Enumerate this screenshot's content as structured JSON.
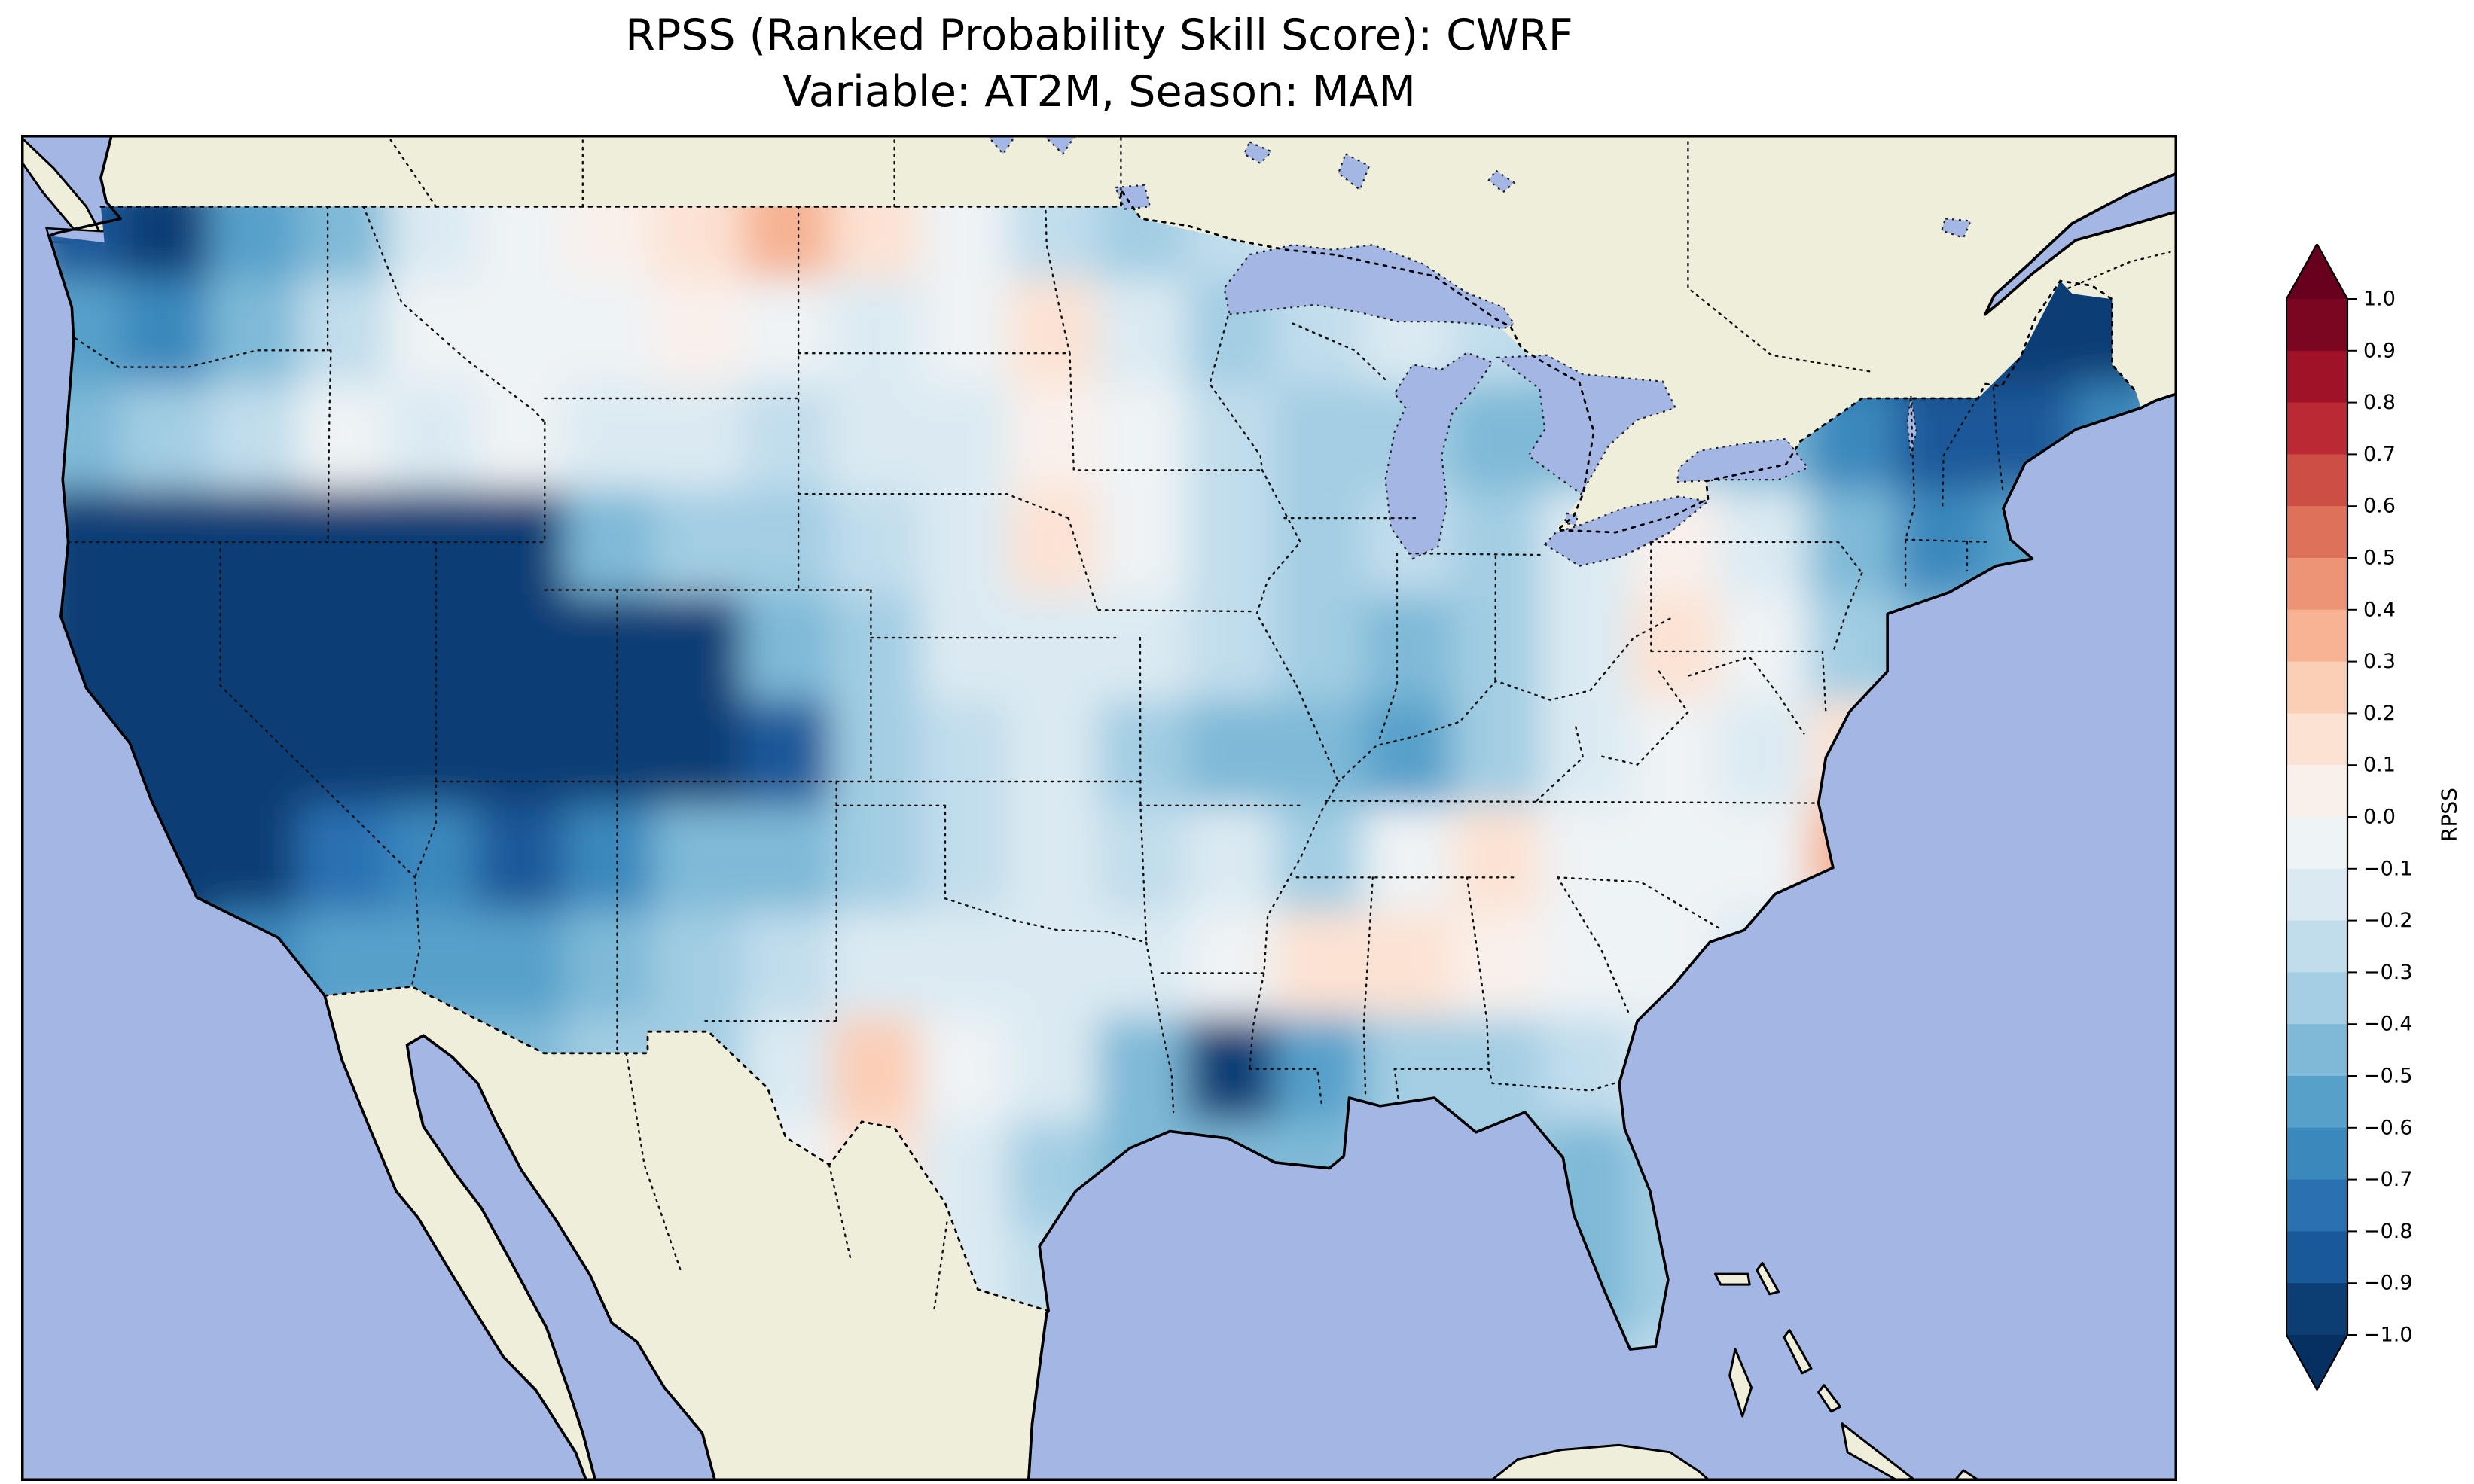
{
  "figure": {
    "title_line1": "RPSS (Ranked Probability Skill Score): CWRF",
    "title_line2": "Variable: AT2M, Season: MAM"
  },
  "map": {
    "ocean_color": "#a4b6e4",
    "land_color": "#efeedb",
    "coastline_color": "#000000",
    "state_border_style": "dotted",
    "national_border_style": "dotted"
  },
  "colorbar": {
    "label": "RPSS",
    "orientation": "vertical",
    "extend": "both",
    "vmin": -1.0,
    "vmax": 1.0,
    "tick_labels": [
      "1.0",
      "0.9",
      "0.8",
      "0.7",
      "0.6",
      "0.5",
      "0.4",
      "0.3",
      "0.2",
      "0.1",
      "0.0",
      "−0.1",
      "−0.2",
      "−0.3",
      "−0.4",
      "−0.5",
      "−0.6",
      "−0.7",
      "−0.8",
      "−0.9",
      "−1.0"
    ]
  },
  "chart_data": {
    "type": "heatmap",
    "title": "RPSS (Ranked Probability Skill Score): CWRF",
    "subtitle": "Variable: AT2M, Season: MAM",
    "metric": "RPSS",
    "model": "CWRF",
    "variable": "AT2M",
    "season": "MAM",
    "region": "CONUS (data masked outside United States)",
    "map_extent": {
      "lon": [
        -125.5,
        -66.0
      ],
      "lat": [
        22.4,
        50.5
      ]
    },
    "colorbar_range": [
      -1.0,
      1.0
    ],
    "colormap": {
      "name": "RdBu_r",
      "levels_step": 0.1,
      "stops": [
        {
          "v": -1.0,
          "hex": "#053061"
        },
        {
          "v": -0.8,
          "hex": "#2166ac"
        },
        {
          "v": -0.6,
          "hex": "#4393c3"
        },
        {
          "v": -0.4,
          "hex": "#92c5de"
        },
        {
          "v": -0.2,
          "hex": "#d1e5f0"
        },
        {
          "v": 0.0,
          "hex": "#f7f7f7"
        },
        {
          "v": 0.2,
          "hex": "#fddbc7"
        },
        {
          "v": 0.4,
          "hex": "#f4a582"
        },
        {
          "v": 0.6,
          "hex": "#d6604d"
        },
        {
          "v": 0.8,
          "hex": "#b2182b"
        },
        {
          "v": 1.0,
          "hex": "#67001f"
        }
      ]
    },
    "grid": {
      "description": "Approximate RPSS field read off the map, coarse grid, row 0 = north",
      "lon_min": -125.2,
      "lon_max": -66.4,
      "lat_max": 49.7,
      "lat_min": 23.3,
      "ncols": 24,
      "nrows": 12,
      "values": [
        [
          -0.85,
          -0.95,
          -0.6,
          -0.45,
          -0.2,
          -0.1,
          0.05,
          0.1,
          0.4,
          0.15,
          -0.1,
          -0.25,
          -0.3,
          -0.25,
          -0.2,
          -0.25,
          -0.2,
          -0.3,
          -0.45,
          -0.4,
          -0.8,
          -0.95,
          -1.0,
          -0.95
        ],
        [
          -0.55,
          -0.7,
          -0.4,
          -0.25,
          -0.1,
          -0.05,
          -0.05,
          0.05,
          -0.1,
          -0.15,
          -0.1,
          0.1,
          -0.15,
          -0.3,
          -0.25,
          -0.2,
          -0.25,
          -0.35,
          -0.5,
          -0.55,
          -0.85,
          -1.0,
          -1.0,
          -0.9
        ],
        [
          -0.5,
          -0.35,
          -0.25,
          -0.1,
          -0.15,
          -0.1,
          -0.15,
          -0.2,
          -0.25,
          -0.2,
          -0.15,
          0.05,
          -0.1,
          -0.25,
          -0.3,
          -0.3,
          -0.5,
          -0.4,
          -0.35,
          -0.45,
          -0.7,
          -0.85,
          -0.8,
          -0.7
        ],
        [
          -0.9,
          -1.0,
          -1.0,
          -1.0,
          -1.0,
          -0.9,
          -0.5,
          -0.3,
          -0.3,
          -0.25,
          -0.2,
          0.1,
          -0.1,
          -0.25,
          -0.3,
          -0.25,
          -0.3,
          -0.2,
          0.05,
          -0.2,
          -0.5,
          -0.7,
          -0.6,
          -0.5
        ],
        [
          -1.0,
          -1.0,
          -1.0,
          -1.0,
          -1.0,
          -1.0,
          -1.0,
          -0.9,
          -0.5,
          -0.3,
          -0.2,
          -0.15,
          -0.2,
          -0.25,
          -0.35,
          -0.45,
          -0.3,
          -0.15,
          0.1,
          -0.1,
          -0.35,
          -0.4,
          -0.4,
          -0.4
        ],
        [
          -1.0,
          -1.0,
          -1.0,
          -1.0,
          -1.0,
          -0.95,
          -1.0,
          -0.95,
          -0.8,
          -0.35,
          -0.25,
          -0.2,
          -0.3,
          -0.4,
          -0.5,
          -0.55,
          -0.35,
          -0.2,
          -0.1,
          -0.15,
          0.1,
          -0.2,
          -0.3,
          -0.3
        ],
        [
          -1.0,
          -1.0,
          -0.9,
          -0.75,
          -0.7,
          -0.8,
          -0.7,
          -0.5,
          -0.4,
          -0.3,
          -0.25,
          -0.2,
          -0.25,
          -0.2,
          -0.3,
          -0.1,
          0.1,
          -0.1,
          -0.05,
          -0.1,
          0.4,
          -0.2,
          -0.2,
          -0.2
        ],
        [
          -1.0,
          -0.9,
          -0.7,
          -0.6,
          -0.6,
          -0.55,
          -0.45,
          -0.35,
          -0.25,
          -0.2,
          -0.15,
          -0.2,
          -0.15,
          -0.1,
          0.15,
          0.1,
          0.05,
          -0.05,
          -0.1,
          -0.15,
          -0.1,
          -0.15,
          -0.15,
          -0.15
        ],
        [
          -0.9,
          -0.8,
          -0.6,
          -0.5,
          -0.45,
          -0.4,
          -0.3,
          -0.3,
          -0.15,
          0.25,
          -0.1,
          -0.2,
          -0.5,
          -0.9,
          -0.6,
          -0.3,
          -0.35,
          -0.25,
          -0.2,
          -0.15,
          -0.1,
          -0.1,
          -0.1,
          -0.1
        ],
        [
          -0.5,
          -0.5,
          -0.4,
          -0.35,
          -0.3,
          -0.3,
          -0.25,
          -0.2,
          -0.1,
          0.1,
          -0.15,
          -0.3,
          -0.4,
          -0.5,
          -0.4,
          -0.3,
          -0.3,
          -0.45,
          -0.35,
          -0.25,
          -0.2,
          -0.2,
          -0.2,
          -0.2
        ],
        [
          -0.3,
          -0.3,
          -0.3,
          -0.3,
          -0.25,
          -0.25,
          -0.2,
          -0.2,
          -0.15,
          -0.15,
          -0.2,
          -0.25,
          -0.3,
          -0.3,
          -0.3,
          -0.3,
          -0.35,
          -0.4,
          -0.3,
          -0.25,
          -0.2,
          -0.2,
          -0.2,
          -0.2
        ],
        [
          -0.2,
          -0.2,
          -0.2,
          -0.2,
          -0.2,
          -0.2,
          -0.2,
          -0.15,
          -0.15,
          -0.15,
          -0.15,
          -0.2,
          -0.2,
          -0.25,
          -0.25,
          -0.25,
          -0.3,
          -0.3,
          -0.25,
          -0.2,
          -0.2,
          -0.2,
          -0.2,
          -0.2
        ]
      ]
    }
  }
}
